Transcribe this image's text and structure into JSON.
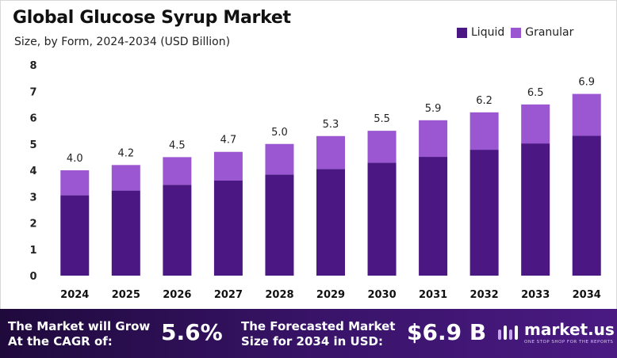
{
  "header": {
    "title": "Global Glucose Syrup Market",
    "subtitle": "Size, by Form, 2024-2034 (USD Billion)"
  },
  "colors": {
    "liquid": "#4a1783",
    "granular": "#9a57d1",
    "footer_bg": "#2b0f52"
  },
  "chart_data": {
    "type": "bar",
    "stacked": true,
    "categories": [
      "2024",
      "2025",
      "2026",
      "2027",
      "2028",
      "2029",
      "2030",
      "2031",
      "2032",
      "2033",
      "2034"
    ],
    "series": [
      {
        "name": "Liquid",
        "values": [
          3.05,
          3.23,
          3.45,
          3.61,
          3.84,
          4.05,
          4.29,
          4.51,
          4.78,
          5.02,
          5.31
        ]
      },
      {
        "name": "Granular",
        "values": [
          0.95,
          0.97,
          1.05,
          1.09,
          1.16,
          1.25,
          1.21,
          1.39,
          1.42,
          1.48,
          1.59
        ]
      }
    ],
    "totals": [
      "4.0",
      "4.2",
      "4.5",
      "4.7",
      "5.0",
      "5.3",
      "5.5",
      "5.9",
      "6.2",
      "6.5",
      "6.9"
    ],
    "yticks": [
      "0",
      "1",
      "2",
      "3",
      "4",
      "5",
      "6",
      "7",
      "8"
    ],
    "ylim": [
      0,
      8
    ],
    "grid": false,
    "legend_position": "top-right",
    "title": "Global Glucose Syrup Market",
    "subtitle": "Size, by Form, 2024-2034 (USD Billion)"
  },
  "footer": {
    "cagr_label": "The Market will Grow\nAt the CAGR of:",
    "cagr_label_line1": "The Market will Grow",
    "cagr_label_line2": "At the CAGR of:",
    "cagr_value": "5.6%",
    "forecast_label_line1": "The Forecasted Market",
    "forecast_label_line2": "Size for 2034 in USD:",
    "forecast_value": "$6.9 B",
    "brand_name": "market.us",
    "brand_tagline": "ONE STOP SHOP FOR THE REPORTS",
    "brand_icon": "market-us-logo-icon"
  }
}
